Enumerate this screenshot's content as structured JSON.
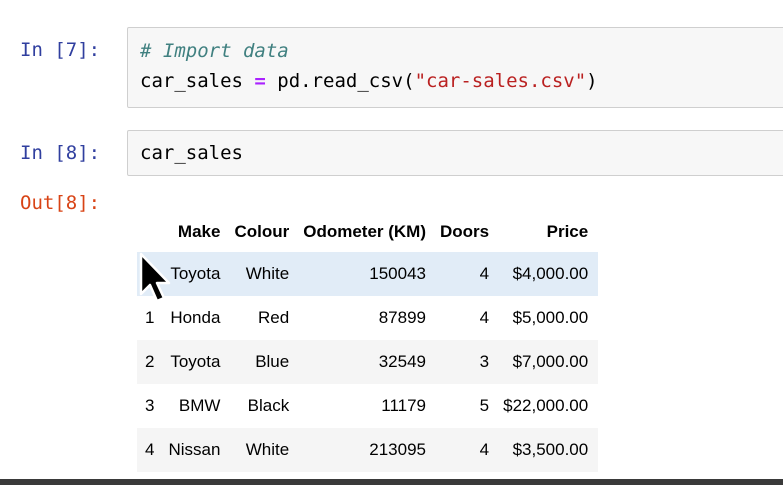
{
  "cells": [
    {
      "prompt": "In [7]:",
      "comment": "# Import data",
      "code": {
        "var": "car_sales ",
        "op": "=",
        "call": " pd.read_csv(",
        "str": "\"car-sales.csv\"",
        "close": ")"
      }
    },
    {
      "prompt": "In [8]:",
      "code": "car_sales"
    }
  ],
  "output": {
    "prompt": "Out[8]:",
    "table": {
      "columns": [
        "",
        "Make",
        "Colour",
        "Odometer (KM)",
        "Doors",
        "Price"
      ],
      "rows": [
        [
          "0",
          "Toyota",
          "White",
          "150043",
          "4",
          "$4,000.00"
        ],
        [
          "1",
          "Honda",
          "Red",
          "87899",
          "4",
          "$5,000.00"
        ],
        [
          "2",
          "Toyota",
          "Blue",
          "32549",
          "3",
          "$7,000.00"
        ],
        [
          "3",
          "BMW",
          "Black",
          "11179",
          "5",
          "$22,000.00"
        ],
        [
          "4",
          "Nissan",
          "White",
          "213095",
          "4",
          "$3,500.00"
        ]
      ]
    }
  },
  "icons": {
    "cursor": "mouse-pointer-icon"
  },
  "colors": {
    "prompt_in": "#303f9f",
    "prompt_out": "#d84315",
    "row_hover": "#e1ecf7"
  }
}
